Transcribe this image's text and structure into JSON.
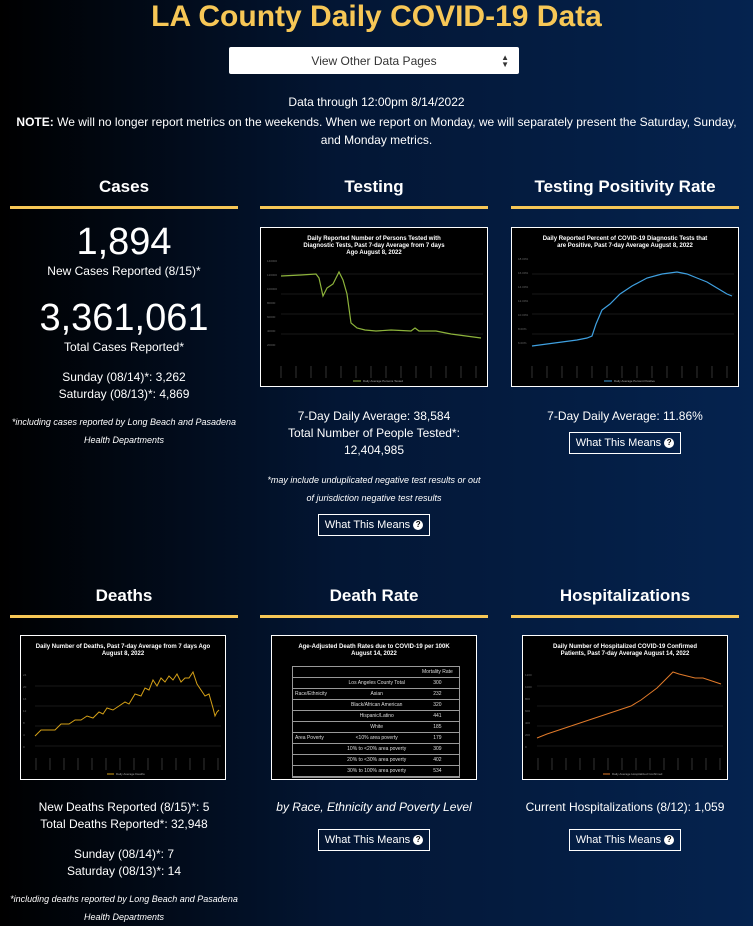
{
  "title": "LA County Daily COVID-19 Data",
  "select": {
    "label": "View Other Data Pages"
  },
  "data_through": "Data through 12:00pm 8/14/2022",
  "note": {
    "label": "NOTE:",
    "text": "We will no longer report metrics on the weekends. When we report on Monday, we will separately present the Saturday, Sunday, and Monday metrics."
  },
  "cases": {
    "title": "Cases",
    "new_value": "1,894",
    "new_label": "New Cases Reported (8/15)*",
    "total_value": "3,361,061",
    "total_label": "Total Cases Reported*",
    "sunday": "Sunday (08/14)*: 3,262",
    "saturday": "Saturday (08/13)*: 4,869",
    "footnote": "*including cases reported by Long Beach and Pasadena Health Departments"
  },
  "testing": {
    "title": "Testing",
    "chart_title": "Daily Reported Number of Persons Tested with Diagnostic Tests, Past 7-day Average from 7 days Ago August 8, 2022",
    "chart_legend": "Daily Average Persons Tested",
    "avg": "7-Day Daily Average: 38,584",
    "total": "Total Number of People Tested*: 12,404,985",
    "footnote": "*may include unduplicated negative test results or out of jurisdiction negative test results",
    "button": "What This Means"
  },
  "positivity": {
    "title": "Testing Positivity Rate",
    "chart_title": "Daily Reported Percent of COVID-19 Diagnostic Tests that are Positive, Past 7-day Average August 8, 2022",
    "chart_legend": "Daily Average Percent Positive",
    "avg": "7-Day Daily Average: 11.86%",
    "button": "What This Means"
  },
  "deaths": {
    "title": "Deaths",
    "chart_title": "Daily Number of Deaths, Past 7-day Average from 7 days Ago August 8, 2022",
    "chart_legend": "Daily Average Deaths",
    "new": "New Deaths Reported (8/15)*: 5",
    "total": "Total Deaths Reported*: 32,948",
    "sunday": "Sunday (08/14)*: 7",
    "saturday": "Saturday (08/13)*: 14",
    "footnote": "*including deaths reported by Long Beach and Pasadena Health Departments"
  },
  "death_rate": {
    "title": "Death Rate",
    "chart_title": "Age-Adjusted Death Rates due to COVID-19 per 100K August 14, 2022",
    "col_header": "Mortality Rate",
    "rows": [
      {
        "group": "",
        "label": "Los Angeles County Total",
        "value": "300"
      },
      {
        "group": "Race/Ethnicity",
        "label": "Asian",
        "value": "232"
      },
      {
        "group": "",
        "label": "Black/African American",
        "value": "320"
      },
      {
        "group": "",
        "label": "Hispanic/Latino",
        "value": "441"
      },
      {
        "group": "",
        "label": "White",
        "value": "185"
      },
      {
        "group": "Area Poverty",
        "label": "<10% area poverty",
        "value": "179"
      },
      {
        "group": "",
        "label": "10% to <20% area poverty",
        "value": "309"
      },
      {
        "group": "",
        "label": "20% to <30% area poverty",
        "value": "402"
      },
      {
        "group": "",
        "label": "30% to 100% area poverty",
        "value": "534"
      }
    ],
    "caption": "by Race, Ethnicity and Poverty Level",
    "button": "What This Means"
  },
  "hospitalizations": {
    "title": "Hospitalizations",
    "chart_title": "Daily Number of Hospitalized COVID-19 Confirmed Patients, Past 7-day Average August 14, 2022",
    "chart_legend": "Daily Average Hospitalized Confirmed",
    "current": "Current Hospitalizations (8/12): 1,059",
    "button": "What This Means"
  },
  "colors": {
    "accent": "#f7c756",
    "testing_line": "#8db33b",
    "positivity_line": "#3fa0e0",
    "deaths_line": "#d4a017",
    "hosp_line": "#e07a2a"
  }
}
